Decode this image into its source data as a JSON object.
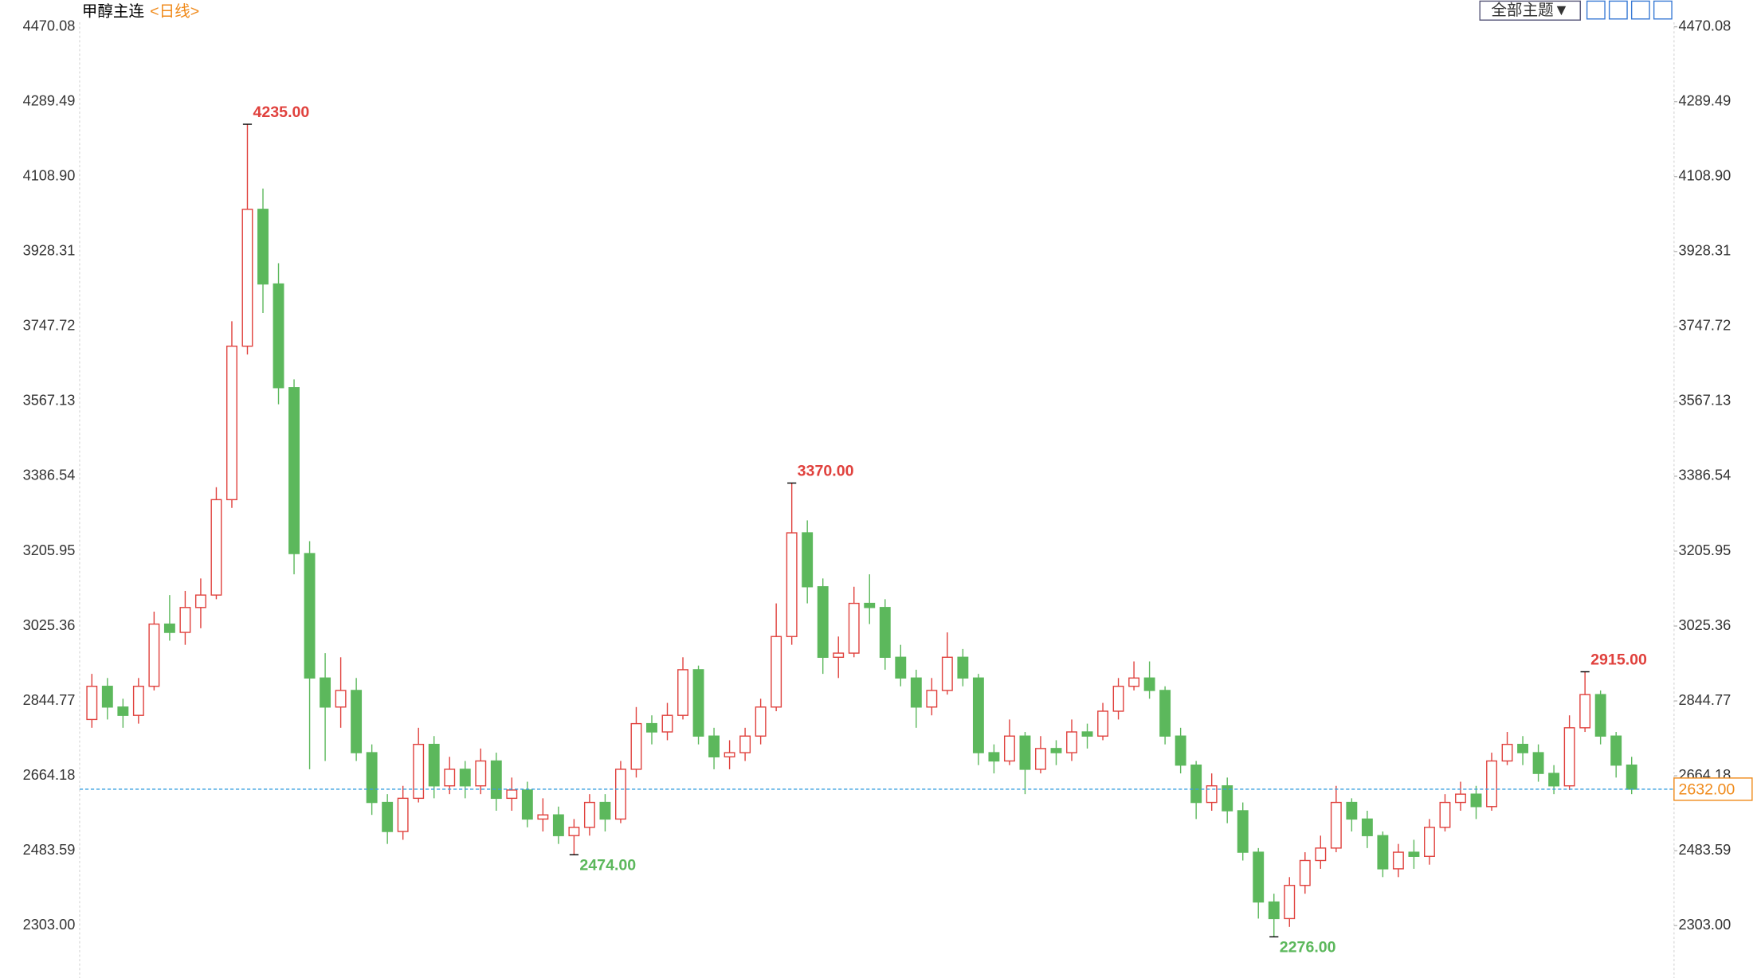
{
  "toolbar": {
    "button": "全部主题▼"
  },
  "chart_data": {
    "type": "candlestick",
    "title": "甲醇主连",
    "subtitle": "<日线>",
    "up_color": "#e0413d",
    "down_color": "#5cb85c",
    "ylim": [
      2190.2,
      4470.08
    ],
    "yticks": [
      {
        "value": 2303,
        "label": "2303.00"
      },
      2483.59,
      2664.18,
      2844.77,
      3025.36,
      3205.95,
      3386.54,
      3567.13,
      3747.72,
      3928.31,
      {
        "value": 4108.9,
        "label": "4108.90"
      },
      4289.49,
      4470.08
    ],
    "last_price": {
      "value": 2632,
      "label": "2632.00",
      "color": "#f08a1a"
    },
    "annotations": [
      {
        "value": 4235,
        "label": "4235.00"
      },
      {
        "value": 3370,
        "label": "3370.00"
      },
      {
        "value": 2474,
        "label": "2474.00"
      },
      {
        "value": 2276,
        "label": "2276.00"
      },
      {
        "value": 2915,
        "label": "2915.00"
      }
    ],
    "open": [
      2800,
      2880,
      2830,
      2810,
      2880,
      3030,
      3010,
      3070,
      3100,
      3330,
      3700,
      4030,
      3850,
      3600,
      3200,
      2900,
      2830,
      2870,
      2720,
      2600,
      2530,
      2610,
      2740,
      2640,
      2680,
      2640,
      2700,
      2610,
      2630,
      2560,
      2570,
      2520,
      2540,
      2600,
      2560,
      2680,
      2790,
      2770,
      2810,
      2920,
      2760,
      2710,
      2720,
      2760,
      2830,
      3000,
      3250,
      3120,
      2950,
      2960,
      3080,
      3070,
      2950,
      2900,
      2830,
      2870,
      2950,
      2900,
      2720,
      2700,
      2760,
      2680,
      2730,
      2720,
      2770,
      2760,
      2820,
      2880,
      2900,
      2870,
      2760,
      2690,
      2600,
      2640,
      2580,
      2480,
      2360,
      2320,
      2400,
      2460,
      2490,
      2600,
      2560,
      2520,
      2440,
      2480,
      2470,
      2540,
      2600,
      2620,
      2590,
      2700,
      2740,
      2720,
      2670,
      2640,
      2780,
      2860,
      2760,
      2690
    ],
    "high": [
      2910,
      2900,
      2850,
      2900,
      3060,
      3100,
      3110,
      3140,
      3360,
      3760,
      4235,
      4080,
      3900,
      3620,
      3230,
      2960,
      2950,
      2900,
      2740,
      2620,
      2640,
      2780,
      2760,
      2710,
      2700,
      2730,
      2720,
      2660,
      2650,
      2610,
      2590,
      2560,
      2620,
      2620,
      2700,
      2830,
      2810,
      2840,
      2950,
      2930,
      2780,
      2750,
      2780,
      2850,
      3080,
      3370,
      3280,
      3140,
      3000,
      3120,
      3150,
      3090,
      2980,
      2920,
      2900,
      3010,
      2970,
      2910,
      2740,
      2800,
      2770,
      2760,
      2750,
      2800,
      2790,
      2840,
      2900,
      2940,
      2940,
      2880,
      2780,
      2700,
      2670,
      2660,
      2600,
      2490,
      2380,
      2420,
      2480,
      2520,
      2640,
      2610,
      2580,
      2530,
      2500,
      2510,
      2560,
      2620,
      2650,
      2640,
      2720,
      2770,
      2760,
      2740,
      2690,
      2810,
      2915,
      2870,
      2770,
      2710
    ],
    "low": [
      2780,
      2800,
      2780,
      2790,
      2870,
      2990,
      2980,
      3020,
      3090,
      3310,
      3680,
      3780,
      3560,
      3150,
      2680,
      2700,
      2780,
      2700,
      2570,
      2500,
      2510,
      2600,
      2610,
      2620,
      2610,
      2620,
      2580,
      2580,
      2540,
      2530,
      2500,
      2474,
      2520,
      2530,
      2550,
      2660,
      2740,
      2750,
      2800,
      2740,
      2680,
      2680,
      2700,
      2740,
      2820,
      2980,
      3080,
      2910,
      2900,
      2950,
      3030,
      2920,
      2880,
      2780,
      2810,
      2860,
      2880,
      2690,
      2670,
      2690,
      2620,
      2670,
      2690,
      2700,
      2730,
      2750,
      2800,
      2870,
      2850,
      2740,
      2670,
      2560,
      2580,
      2550,
      2460,
      2320,
      2276,
      2300,
      2380,
      2440,
      2480,
      2530,
      2490,
      2420,
      2420,
      2440,
      2450,
      2530,
      2580,
      2560,
      2580,
      2690,
      2690,
      2650,
      2620,
      2630,
      2770,
      2740,
      2660,
      2620
    ],
    "close": [
      2880,
      2830,
      2810,
      2880,
      3030,
      3010,
      3070,
      3100,
      3330,
      3700,
      4030,
      3850,
      3600,
      3200,
      2900,
      2830,
      2870,
      2720,
      2600,
      2530,
      2610,
      2740,
      2640,
      2680,
      2640,
      2700,
      2610,
      2630,
      2560,
      2570,
      2520,
      2540,
      2600,
      2560,
      2680,
      2790,
      2770,
      2810,
      2920,
      2760,
      2710,
      2720,
      2760,
      2830,
      3000,
      3250,
      3120,
      2950,
      2960,
      3080,
      3070,
      2950,
      2900,
      2830,
      2870,
      2950,
      2900,
      2720,
      2700,
      2760,
      2680,
      2730,
      2720,
      2770,
      2760,
      2820,
      2880,
      2900,
      2870,
      2760,
      2690,
      2600,
      2640,
      2580,
      2480,
      2360,
      2320,
      2400,
      2460,
      2490,
      2600,
      2560,
      2520,
      2440,
      2480,
      2470,
      2540,
      2600,
      2620,
      2590,
      2700,
      2740,
      2720,
      2670,
      2640,
      2780,
      2860,
      2760,
      2690,
      2632
    ]
  }
}
